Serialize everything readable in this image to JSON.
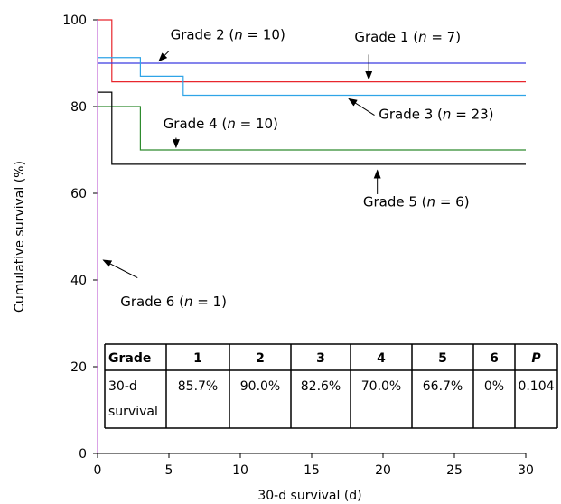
{
  "chart_data": {
    "type": "line",
    "step": true,
    "xlabel": "30-d survival (d)",
    "ylabel": "Cumulative survival (%)",
    "xlim": [
      0,
      30
    ],
    "ylim": [
      0,
      100
    ],
    "xticks": [
      0,
      5,
      10,
      15,
      20,
      25,
      30
    ],
    "yticks": [
      0,
      20,
      40,
      60,
      80,
      100
    ],
    "grid": false,
    "series": [
      {
        "name": "Grade 1",
        "color": "#e8262d",
        "x": [
          0,
          1,
          30
        ],
        "y": [
          100,
          85.7,
          85.7
        ]
      },
      {
        "name": "Grade 2",
        "color": "#3a3ae0",
        "x": [
          0,
          30
        ],
        "y": [
          90.0,
          90.0
        ]
      },
      {
        "name": "Grade 3",
        "color": "#2fa4e7",
        "x": [
          0,
          3,
          6,
          30
        ],
        "y": [
          91.3,
          87.0,
          82.6,
          82.6
        ]
      },
      {
        "name": "Grade 4",
        "color": "#2e8b2e",
        "x": [
          0,
          3,
          30
        ],
        "y": [
          80.0,
          70.0,
          70.0
        ]
      },
      {
        "name": "Grade 5",
        "color": "#000000",
        "x": [
          0,
          1,
          30
        ],
        "y": [
          83.3,
          66.7,
          66.7
        ]
      },
      {
        "name": "Grade 6",
        "color": "#c266d6",
        "x": [
          0,
          0
        ],
        "y": [
          100,
          0
        ]
      }
    ],
    "annotations": [
      {
        "series": "Grade 2",
        "pre": "Grade 2 (",
        "it": "n",
        "post": " = 10)",
        "x": 5.1,
        "y": 95.5,
        "arrow": [
          [
            5.0,
            92.8
          ],
          [
            4.3,
            90.5
          ]
        ]
      },
      {
        "series": "Grade 1",
        "pre": "Grade 1 (",
        "it": "n",
        "post": " = 7)",
        "x": 18.0,
        "y": 95.0,
        "arrow": [
          [
            19.0,
            92.0
          ],
          [
            19.0,
            86.3
          ]
        ]
      },
      {
        "series": "Grade 3",
        "pre": "Grade 3 (",
        "it": "n",
        "post": " = 23)",
        "x": 19.7,
        "y": 77.2,
        "arrow": [
          [
            19.4,
            78.0
          ],
          [
            17.6,
            81.8
          ]
        ]
      },
      {
        "series": "Grade 4",
        "pre": "Grade 4 (",
        "it": "n",
        "post": " = 10)",
        "x": 4.6,
        "y": 75.0,
        "arrow": [
          [
            5.5,
            72.8
          ],
          [
            5.5,
            70.6
          ]
        ]
      },
      {
        "series": "Grade 5",
        "pre": "Grade 5 (",
        "it": "n",
        "post": " = 6)",
        "x": 18.6,
        "y": 57.0,
        "arrow": [
          [
            19.6,
            59.8
          ],
          [
            19.6,
            65.3
          ]
        ]
      },
      {
        "series": "Grade 6",
        "pre": "Grade 6 (",
        "it": "n",
        "post": " = 1)",
        "x": 1.6,
        "y": 34.0,
        "arrow": [
          [
            2.8,
            40.5
          ],
          [
            0.4,
            44.6
          ]
        ]
      }
    ],
    "table": {
      "header": [
        "Grade",
        "1",
        "2",
        "3",
        "4",
        "5",
        "6",
        "P"
      ],
      "row_label": [
        "30-d",
        "survival"
      ],
      "values": [
        "85.7%",
        "90.0%",
        "82.6%",
        "70.0%",
        "66.7%",
        "0%",
        "0.104"
      ]
    }
  }
}
